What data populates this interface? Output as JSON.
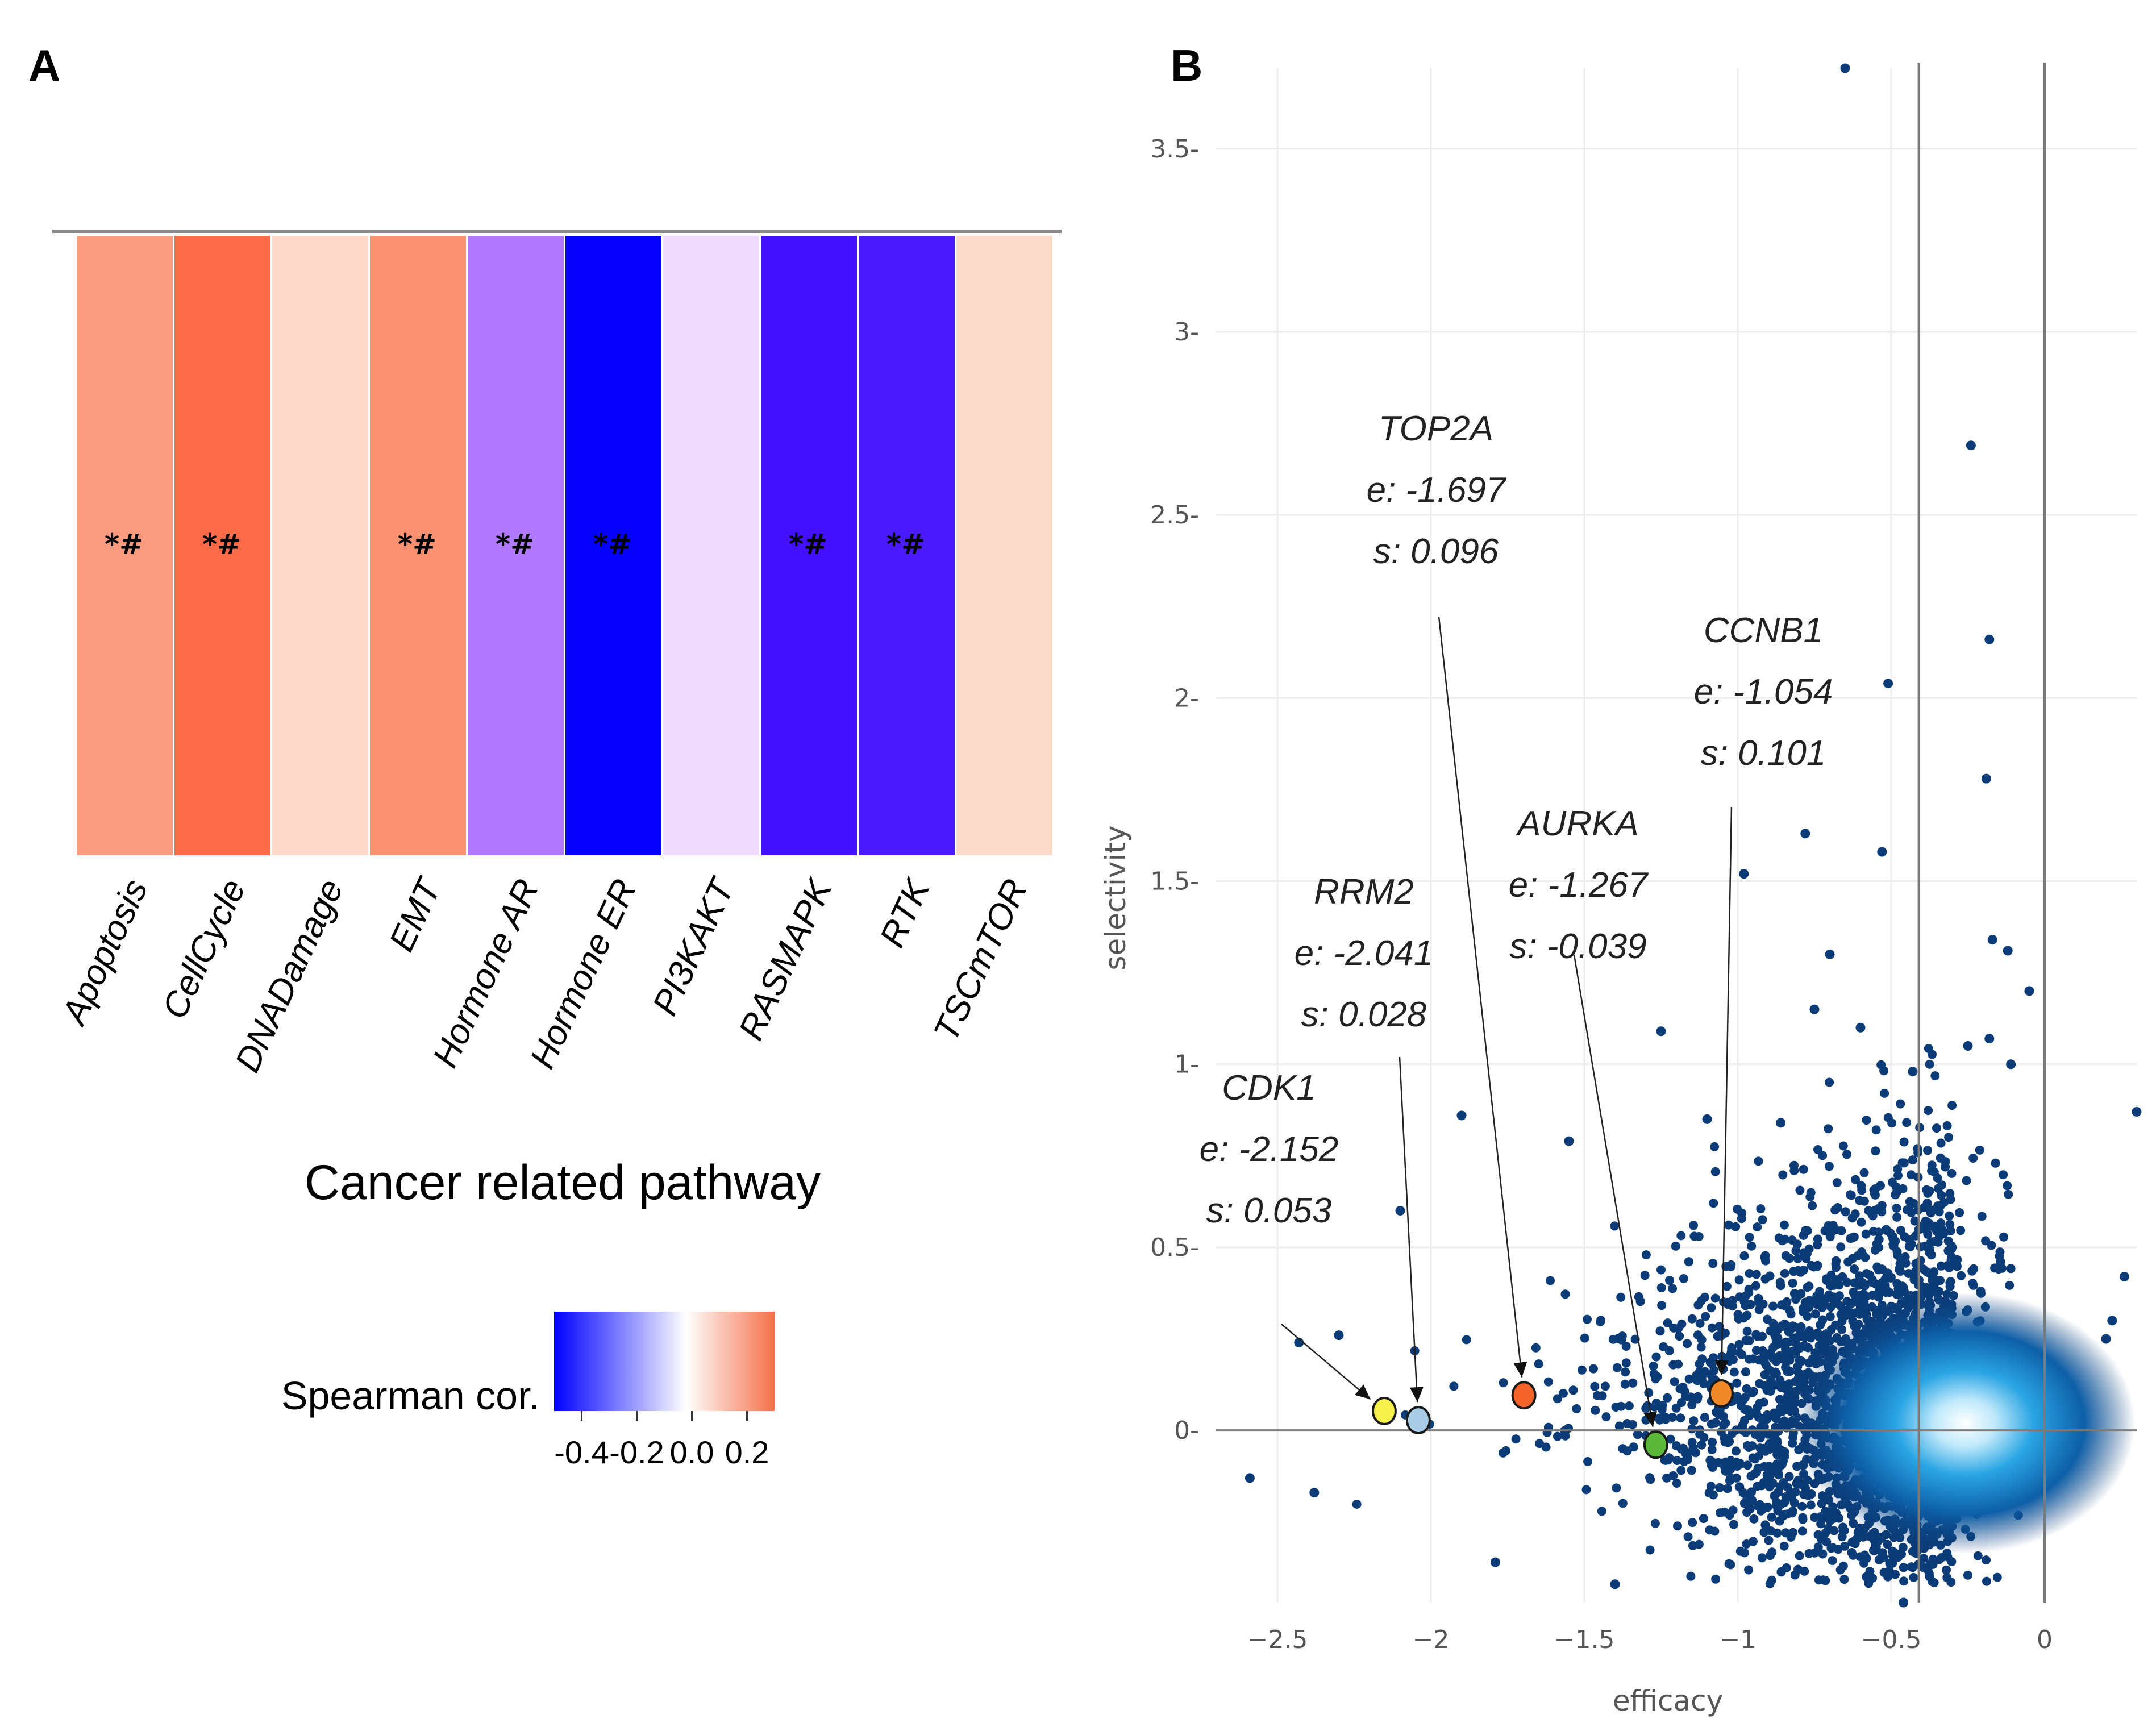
{
  "panels": {
    "a_label": "A",
    "b_label": "B"
  },
  "chart_data": [
    {
      "type": "heatmap",
      "title": "",
      "xlabel": "Cancer related pathway",
      "ylabel": "",
      "categories": [
        "Apoptosis",
        "CellCycle",
        "DNADamage",
        "EMT",
        "Hormone AR",
        "Hormone ER",
        "PI3KAKT",
        "RASMAPK",
        "RTK",
        "TSCmTOR"
      ],
      "values": [
        0.22,
        0.3,
        0.08,
        0.22,
        -0.3,
        -0.5,
        -0.05,
        -0.45,
        -0.45,
        0.08
      ],
      "colors": [
        "#fa9b80",
        "#fc6a48",
        "#fdd8cb",
        "#fa9272",
        "#b079fe",
        "#0500ff",
        "#f1dcff",
        "#4311ff",
        "#4b1bff",
        "#fddbcb"
      ],
      "markers": [
        "*#",
        "*#",
        "",
        "*#",
        "*#",
        "*#",
        "",
        "*#",
        "*#",
        ""
      ],
      "legend": {
        "title": "Spearman cor.",
        "ticks": [
          "-0.4",
          "-0.2",
          "0.0",
          "0.2"
        ],
        "tick_values": [
          -0.4,
          -0.2,
          0.0,
          0.2
        ],
        "range": [
          -0.5,
          0.3
        ],
        "gradient": [
          "#0000ff",
          "#ffffff",
          "#f5704a"
        ]
      }
    },
    {
      "type": "scatter",
      "title": "",
      "xlabel": "efficacy",
      "ylabel": "selectivity",
      "xlim": [
        -2.7,
        0.3
      ],
      "ylim": [
        -0.47,
        3.72
      ],
      "xticks": [
        -2.5,
        -2,
        -1.5,
        -1,
        -0.5,
        0
      ],
      "xtick_labels": [
        "−2.5",
        "−2",
        "−1.5",
        "−1",
        "−0.5",
        "0"
      ],
      "yticks": [
        0,
        0.5,
        1,
        1.5,
        2,
        2.5,
        3,
        3.5
      ],
      "ytick_labels": [
        "0",
        "0.5",
        "1",
        "1.5",
        "2",
        "2.5",
        "3",
        "3.5"
      ],
      "vlines": [
        -0.41,
        0
      ],
      "hlines": [
        0
      ],
      "point_color": "#0b3c78",
      "outliers": [
        {
          "x": -0.65,
          "y": 3.72
        },
        {
          "x": -0.24,
          "y": 2.69
        },
        {
          "x": -0.18,
          "y": 2.16
        },
        {
          "x": -0.51,
          "y": 2.04
        },
        {
          "x": -0.19,
          "y": 1.78
        },
        {
          "x": -0.78,
          "y": 1.63
        },
        {
          "x": -0.53,
          "y": 1.58
        },
        {
          "x": -0.98,
          "y": 1.52
        },
        {
          "x": -0.17,
          "y": 1.34
        },
        {
          "x": -0.12,
          "y": 1.31
        },
        {
          "x": -0.7,
          "y": 1.3
        },
        {
          "x": -0.05,
          "y": 1.2
        },
        {
          "x": -0.75,
          "y": 1.15
        },
        {
          "x": -0.6,
          "y": 1.1
        },
        {
          "x": -1.25,
          "y": 1.09
        },
        {
          "x": -0.18,
          "y": 1.07
        },
        {
          "x": -0.25,
          "y": 1.05
        },
        {
          "x": 0.3,
          "y": 0.87
        },
        {
          "x": -0.43,
          "y": 0.98
        },
        {
          "x": -0.11,
          "y": 1.0
        },
        {
          "x": -1.9,
          "y": 0.86
        },
        {
          "x": -2.59,
          "y": -0.13
        },
        {
          "x": -2.43,
          "y": 0.24
        },
        {
          "x": -2.38,
          "y": -0.17
        },
        {
          "x": -2.3,
          "y": 0.26
        },
        {
          "x": -2.1,
          "y": 0.6
        },
        {
          "x": -1.55,
          "y": 0.79
        },
        {
          "x": -1.1,
          "y": 0.85
        },
        {
          "x": -0.86,
          "y": 0.84
        },
        {
          "x": 0.22,
          "y": 0.3
        },
        {
          "x": 0.2,
          "y": 0.25
        },
        {
          "x": 0.26,
          "y": 0.42
        },
        {
          "x": -0.46,
          "y": -0.47
        },
        {
          "x": -0.58,
          "y": -0.4
        },
        {
          "x": -1.4,
          "y": -0.42
        },
        {
          "x": -1.79,
          "y": -0.36
        }
      ],
      "highlighted": [
        {
          "gene": "CDK1",
          "efficacy_text": "e: -2.152",
          "selectivity_text": "s: 0.053",
          "x": -2.152,
          "y": 0.053,
          "color": "#f5f04a"
        },
        {
          "gene": "RRM2",
          "efficacy_text": "e: -2.041",
          "selectivity_text": "s: 0.028",
          "x": -2.041,
          "y": 0.028,
          "color": "#a8cce6"
        },
        {
          "gene": "TOP2A",
          "efficacy_text": "e: -1.697",
          "selectivity_text": "s: 0.096",
          "x": -1.697,
          "y": 0.096,
          "color": "#f4632a"
        },
        {
          "gene": "AURKA",
          "efficacy_text": "e: -1.267",
          "selectivity_text": "s: -0.039",
          "x": -1.267,
          "y": -0.039,
          "color": "#5cb83a"
        },
        {
          "gene": "CCNB1",
          "efficacy_text": "e: -1.054",
          "selectivity_text": "s: 0.101",
          "x": -1.054,
          "y": 0.101,
          "color": "#f0882a"
        }
      ]
    }
  ]
}
